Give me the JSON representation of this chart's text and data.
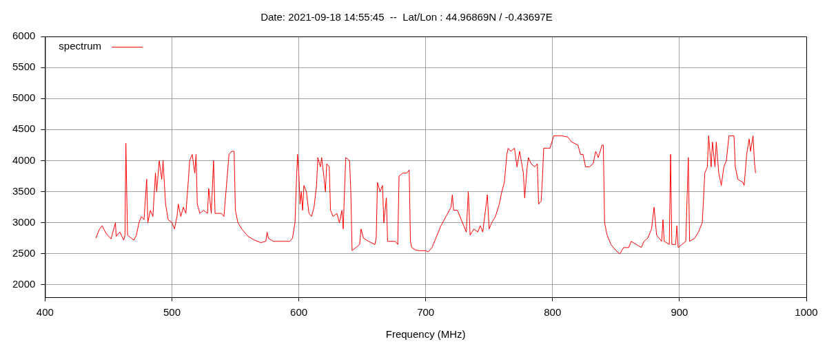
{
  "chart_data": {
    "type": "line",
    "title": "Date: 2021-09-18 14:55:45  --  Lat/Lon : 44.96869N / -0.43697E",
    "xlabel": "Frequency (MHz)",
    "xlim": [
      400,
      1000
    ],
    "xticks": [
      400,
      500,
      600,
      700,
      800,
      900,
      1000
    ],
    "ylim": [
      1800,
      6000
    ],
    "yticks": [
      2000,
      2500,
      3000,
      3500,
      4000,
      4500,
      5000,
      5500,
      6000
    ],
    "grid": true,
    "legend": "top left",
    "marker": "none",
    "line_style": "solid",
    "series": [
      {
        "name": "spectrum",
        "color": "#ff0000",
        "x": [
          440,
          443,
          445,
          448,
          452,
          455.5,
          456,
          459,
          462,
          463,
          463.7,
          465,
          468,
          470,
          472,
          474,
          476,
          478,
          480.1,
          481,
          483,
          485,
          487,
          488,
          490,
          492,
          493,
          495,
          497,
          500,
          502,
          504,
          505,
          507,
          509,
          511,
          513,
          514,
          516,
          518,
          519,
          520,
          522,
          525,
          528,
          529,
          531,
          532.8,
          534,
          539,
          541,
          543,
          545,
          547,
          549,
          550,
          552,
          555,
          560,
          565,
          570,
          574,
          575,
          576,
          580,
          585,
          590,
          593,
          595,
          597,
          598,
          599,
          600,
          601,
          602,
          603,
          604,
          606,
          608,
          610,
          612,
          614,
          615,
          617,
          618,
          620,
          621,
          622,
          624,
          625,
          627,
          630,
          632,
          634,
          635,
          636,
          637,
          640,
          641,
          642,
          645,
          648,
          649,
          651,
          655,
          660,
          661,
          662,
          664,
          666,
          667,
          668,
          669,
          670,
          673,
          676,
          678,
          679,
          682,
          685,
          687,
          688,
          689,
          692,
          695,
          700,
          702,
          705,
          708,
          712,
          716,
          720,
          721,
          722,
          725,
          728,
          730,
          732,
          733.6,
          735,
          738,
          741,
          743,
          745,
          748.6,
          750,
          752,
          755,
          758,
          760,
          762,
          764,
          765,
          767,
          770,
          772,
          774,
          777,
          778,
          780,
          781,
          783,
          786,
          788,
          789,
          791,
          792,
          793,
          796,
          798,
          800.2,
          801,
          807,
          812,
          815,
          820,
          822,
          824,
          826,
          829,
          832,
          834,
          836,
          839,
          840,
          841,
          843,
          846,
          850,
          853,
          856,
          860,
          862,
          866,
          870,
          872,
          875,
          878,
          880,
          882,
          884,
          886,
          887,
          888,
          892,
          893,
          894,
          897,
          898,
          899,
          902,
          905,
          907,
          908,
          912,
          915,
          918,
          920,
          922,
          923,
          925,
          926,
          928,
          929,
          931,
          933,
          935,
          937,
          939,
          943,
          944,
          946,
          950,
          951,
          953,
          955,
          956,
          958,
          959,
          960
        ],
        "values": [
          2750,
          2900,
          2950,
          2830,
          2740,
          3000,
          2780,
          2850,
          2720,
          2800,
          4280,
          2800,
          2750,
          2720,
          2800,
          3000,
          3100,
          3050,
          3700,
          3000,
          3200,
          3100,
          3800,
          3500,
          4000,
          3700,
          4000,
          3300,
          3050,
          3000,
          2900,
          3100,
          3300,
          3100,
          3250,
          3150,
          3700,
          4000,
          4100,
          3800,
          4100,
          3300,
          3150,
          3200,
          3150,
          3550,
          3150,
          4000,
          3150,
          3150,
          3100,
          3600,
          4100,
          4150,
          4150,
          3200,
          3000,
          2900,
          2780,
          2720,
          2680,
          2700,
          2850,
          2750,
          2700,
          2700,
          2700,
          2700,
          2750,
          3000,
          3600,
          4100,
          3800,
          3300,
          3500,
          3200,
          3600,
          3500,
          3150,
          3100,
          3250,
          3600,
          4050,
          3900,
          4050,
          3700,
          3500,
          3950,
          3900,
          3200,
          3100,
          3150,
          3000,
          3200,
          2900,
          3500,
          4050,
          4000,
          3500,
          2550,
          2600,
          2650,
          2900,
          2750,
          2700,
          2650,
          2750,
          3650,
          3500,
          3600,
          3000,
          3200,
          3400,
          2700,
          2700,
          2700,
          2650,
          3750,
          3800,
          3800,
          3850,
          2700,
          2600,
          2560,
          2550,
          2550,
          2530,
          2600,
          2750,
          2950,
          3100,
          3250,
          3450,
          3200,
          3200,
          3050,
          2950,
          2850,
          3500,
          2800,
          2900,
          2850,
          2950,
          2850,
          3450,
          2900,
          3000,
          3100,
          3300,
          3500,
          3650,
          4100,
          4200,
          4150,
          4200,
          3900,
          4150,
          3800,
          3400,
          3900,
          4050,
          3950,
          3900,
          3950,
          3300,
          3350,
          3700,
          4200,
          4200,
          4200,
          4350,
          4400,
          4400,
          4380,
          4300,
          4250,
          4100,
          4100,
          3900,
          3900,
          3950,
          4150,
          4050,
          4250,
          4250,
          3000,
          2800,
          2650,
          2550,
          2500,
          2600,
          2600,
          2700,
          2650,
          2600,
          2700,
          2750,
          2900,
          3250,
          2800,
          2750,
          2700,
          3050,
          2700,
          2650,
          4100,
          2650,
          2650,
          2950,
          2600,
          2650,
          2700,
          4050,
          2700,
          2750,
          2850,
          3000,
          3800,
          3900,
          4400,
          3900,
          4300,
          3900,
          4300,
          3800,
          3600,
          3900,
          4000,
          4400,
          4400,
          3900,
          3700,
          3650,
          3600,
          4100,
          4350,
          4150,
          4400,
          4000,
          3800
        ]
      }
    ]
  }
}
